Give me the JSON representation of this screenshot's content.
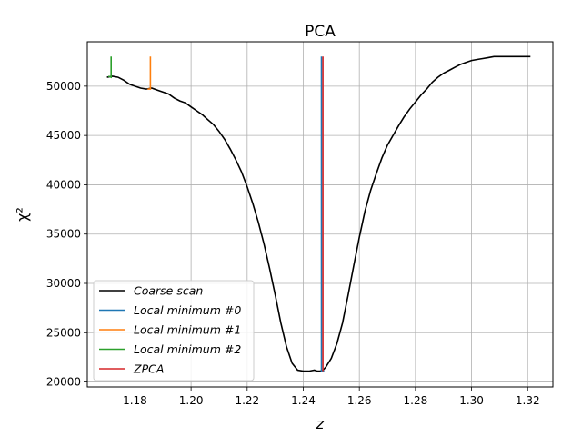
{
  "chart_data": {
    "type": "line",
    "title": "PCA",
    "xlabel": "z",
    "ylabel": "χ²",
    "xlim": [
      1.163,
      1.329
    ],
    "ylim": [
      19500,
      54500
    ],
    "xticks": [
      1.18,
      1.2,
      1.22,
      1.24,
      1.26,
      1.28,
      1.3,
      1.32
    ],
    "xtick_labels": [
      "1.18",
      "1.20",
      "1.22",
      "1.24",
      "1.26",
      "1.28",
      "1.30",
      "1.32"
    ],
    "yticks": [
      20000,
      25000,
      30000,
      35000,
      40000,
      45000,
      50000
    ],
    "ytick_labels": [
      "20000",
      "25000",
      "30000",
      "35000",
      "40000",
      "45000",
      "50000"
    ],
    "grid": true,
    "legend_position": "lower-left",
    "series": [
      {
        "name": "Coarse scan",
        "color": "#000000",
        "kind": "line",
        "x": [
          1.17,
          1.172,
          1.174,
          1.176,
          1.178,
          1.18,
          1.182,
          1.184,
          1.186,
          1.188,
          1.19,
          1.192,
          1.194,
          1.196,
          1.198,
          1.2,
          1.202,
          1.204,
          1.206,
          1.208,
          1.21,
          1.212,
          1.214,
          1.216,
          1.218,
          1.22,
          1.222,
          1.224,
          1.226,
          1.228,
          1.23,
          1.232,
          1.234,
          1.236,
          1.238,
          1.24,
          1.242,
          1.244,
          1.245,
          1.246,
          1.247,
          1.248,
          1.25,
          1.252,
          1.254,
          1.256,
          1.258,
          1.26,
          1.262,
          1.264,
          1.266,
          1.268,
          1.27,
          1.272,
          1.274,
          1.276,
          1.278,
          1.28,
          1.282,
          1.284,
          1.286,
          1.288,
          1.29,
          1.292,
          1.294,
          1.296,
          1.298,
          1.3,
          1.302,
          1.304,
          1.306,
          1.308,
          1.31,
          1.312,
          1.314,
          1.316,
          1.318,
          1.32,
          1.321
        ],
        "y": [
          50900,
          51000,
          50900,
          50600,
          50200,
          50000,
          49800,
          49700,
          49800,
          49600,
          49400,
          49200,
          48800,
          48500,
          48300,
          47900,
          47500,
          47100,
          46600,
          46100,
          45400,
          44600,
          43600,
          42500,
          41300,
          39800,
          38100,
          36200,
          34000,
          31500,
          28800,
          26000,
          23600,
          21900,
          21200,
          21100,
          21100,
          21200,
          21100,
          21100,
          21200,
          21500,
          22400,
          23900,
          26000,
          28800,
          31800,
          34700,
          37300,
          39400,
          41100,
          42700,
          44000,
          45000,
          46000,
          46900,
          47700,
          48400,
          49100,
          49700,
          50400,
          50900,
          51300,
          51600,
          51900,
          52200,
          52400,
          52600,
          52700,
          52800,
          52900,
          53000,
          53000,
          53000,
          53000,
          53000,
          53000,
          53000,
          53000
        ]
      },
      {
        "name": "Local minimum #0",
        "color": "#1f77b4",
        "kind": "marker",
        "x": [
          1.2465,
          1.2465,
          1.2475
        ],
        "y": [
          53000,
          21100,
          21100
        ]
      },
      {
        "name": "Local minimum #1",
        "color": "#ff7f0e",
        "kind": "marker",
        "x": [
          1.1855,
          1.1855,
          1.1845
        ],
        "y": [
          53000,
          49700,
          49700
        ]
      },
      {
        "name": "Local minimum #2",
        "color": "#2ca02c",
        "kind": "marker",
        "x": [
          1.1715,
          1.1715,
          1.1705
        ],
        "y": [
          53000,
          50900,
          51000
        ]
      },
      {
        "name": "ZPCA",
        "color": "#d62728",
        "kind": "vline",
        "x": [
          1.247,
          1.247
        ],
        "y": [
          21100,
          53000
        ]
      }
    ]
  },
  "legend": {
    "items": [
      "Coarse scan",
      "Local minimum #0",
      "Local minimum #1",
      "Local minimum #2",
      "ZPCA"
    ],
    "colors": [
      "#000000",
      "#1f77b4",
      "#ff7f0e",
      "#2ca02c",
      "#d62728"
    ]
  }
}
